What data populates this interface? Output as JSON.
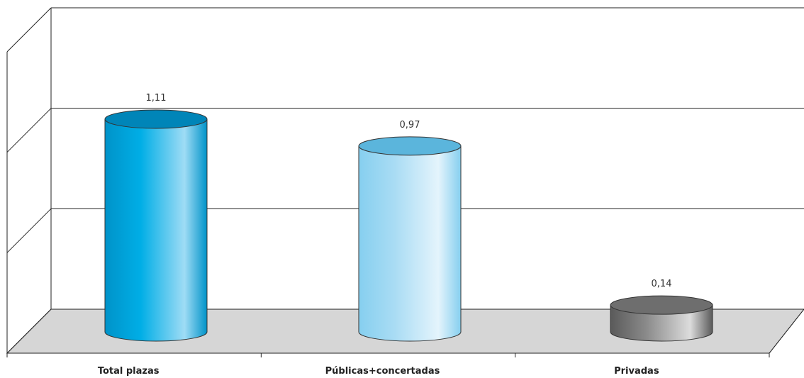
{
  "chart_data": {
    "type": "bar",
    "style": "3d-cylinder",
    "categories": [
      "Total plazas",
      "Públicas+concertadas",
      "Privadas"
    ],
    "values": [
      1.11,
      0.97,
      0.14
    ],
    "value_labels": [
      "1,11",
      "0,97",
      "0,14"
    ],
    "title": "",
    "xlabel": "",
    "ylabel": "",
    "ylim": [
      0,
      1.5
    ],
    "grid": true,
    "legend": "none",
    "colors": {
      "Total plazas": {
        "body_dark": "#0093c9",
        "body_mid": "#00aee6",
        "body_light": "#9fdcf5",
        "top": "#0085b8"
      },
      "Públicas+concertadas": {
        "body_dark": "#86cfef",
        "body_mid": "#a9dcf4",
        "body_light": "#e4f4fc",
        "top": "#5bb5dc"
      },
      "Privadas": {
        "body_dark": "#5a5a5a",
        "body_mid": "#8a8a8a",
        "body_light": "#dcdcdc",
        "top": "#6e6e6e"
      }
    },
    "floor_color": "#d6d6d6"
  }
}
